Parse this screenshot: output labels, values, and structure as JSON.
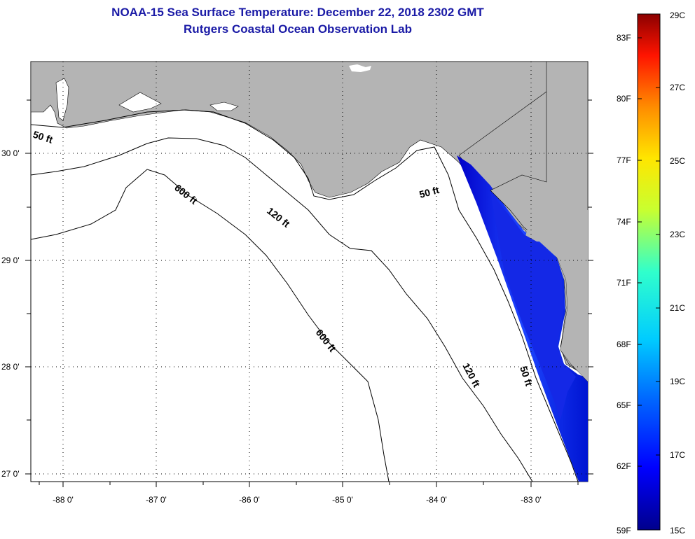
{
  "title": "NOAA-15 Sea Surface Temperature:  December 22, 2018 2302 GMT",
  "subtitle": "Rutgers Coastal Ocean Observation Lab",
  "map": {
    "lat_labels": [
      "30 0'",
      "29 0'",
      "28 0'",
      "27 0'"
    ],
    "lon_labels": [
      "-88 0'",
      "-87 0'",
      "-86 0'",
      "-85 0'",
      "-84 0'",
      "-83 0'"
    ],
    "contour_labels": [
      {
        "text": "50 ft"
      },
      {
        "text": "600 ft"
      },
      {
        "text": "120 ft"
      },
      {
        "text": "50 ft"
      },
      {
        "text": "600 ft"
      },
      {
        "text": "120 ft"
      },
      {
        "text": "50 ft"
      }
    ],
    "colors": {
      "land": "#b4b4b4",
      "water": "#ffffff",
      "sst_cold": "#0000b4",
      "sst_mid": "#1e3cff"
    }
  },
  "colorbar": {
    "f_labels": [
      "83F",
      "80F",
      "77F",
      "74F",
      "71F",
      "68F",
      "65F",
      "62F",
      "59F"
    ],
    "c_labels": [
      "29C",
      "27C",
      "25C",
      "23C",
      "21C",
      "19C",
      "17C",
      "15C"
    ]
  }
}
